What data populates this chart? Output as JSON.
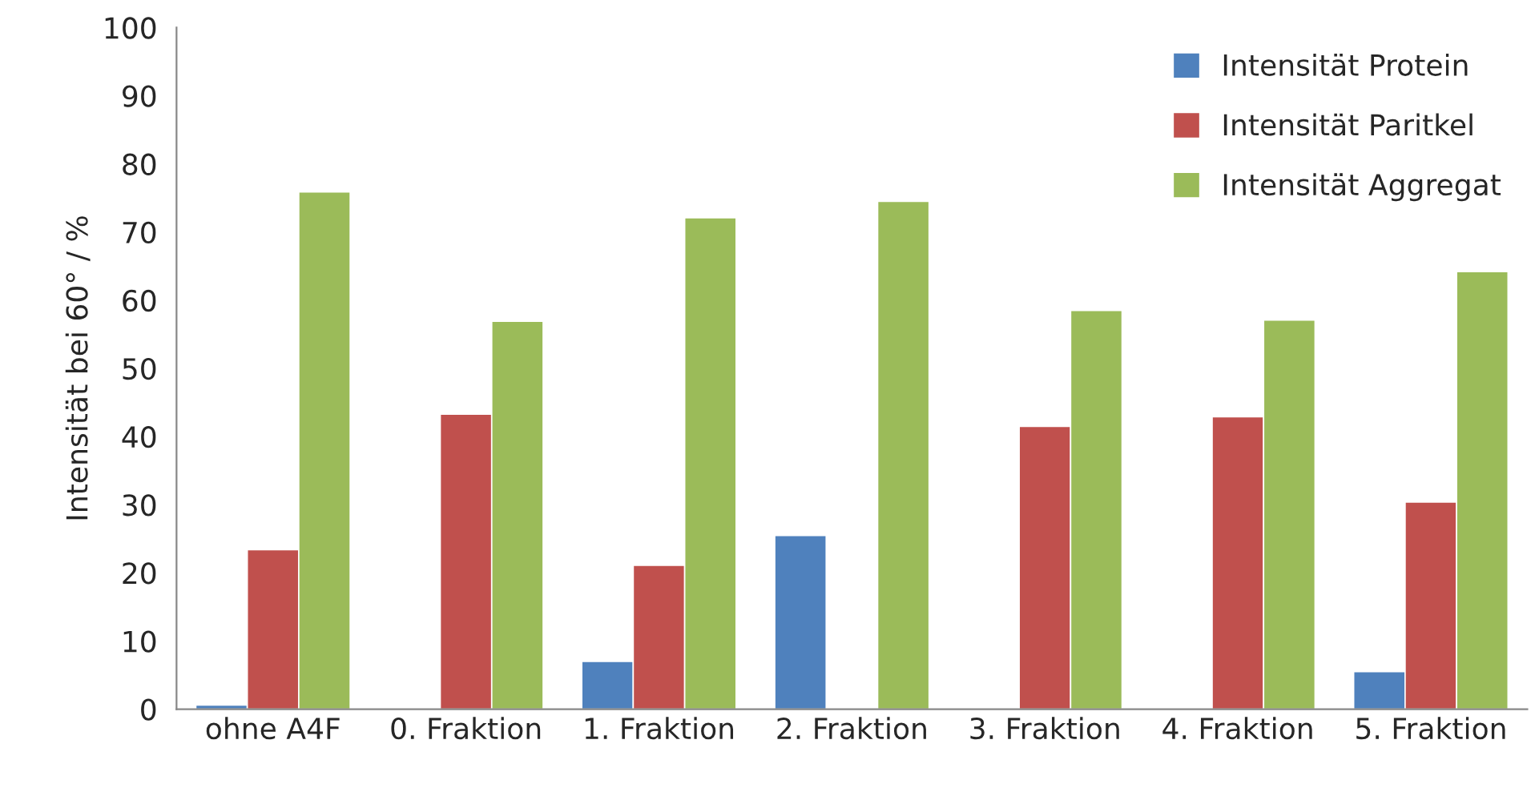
{
  "chart_data": {
    "type": "bar",
    "ylabel": "Intensität bei 60° / %",
    "categories": [
      "ohne A4F",
      "0. Fraktion",
      "1. Fraktion",
      "2. Fraktion",
      "3. Fraktion",
      "4. Fraktion",
      "5. Fraktion"
    ],
    "series": [
      {
        "name": "Intensität Protein",
        "color": "#4f81bd",
        "values": [
          0.6,
          null,
          7.0,
          25.5,
          null,
          null,
          5.5
        ]
      },
      {
        "name": "Intensität Paritkel",
        "color": "#c0504d",
        "values": [
          23.4,
          43.3,
          21.1,
          null,
          41.5,
          42.9,
          30.4
        ]
      },
      {
        "name": "Intensität Aggregat",
        "color": "#9bbb59",
        "values": [
          75.9,
          56.9,
          72.1,
          74.5,
          58.5,
          57.1,
          64.2
        ]
      }
    ],
    "ylim": [
      0,
      100
    ],
    "yticks": [
      0,
      10,
      20,
      30,
      40,
      50,
      60,
      70,
      80,
      90,
      100
    ],
    "grid": false,
    "legend": "top right"
  }
}
